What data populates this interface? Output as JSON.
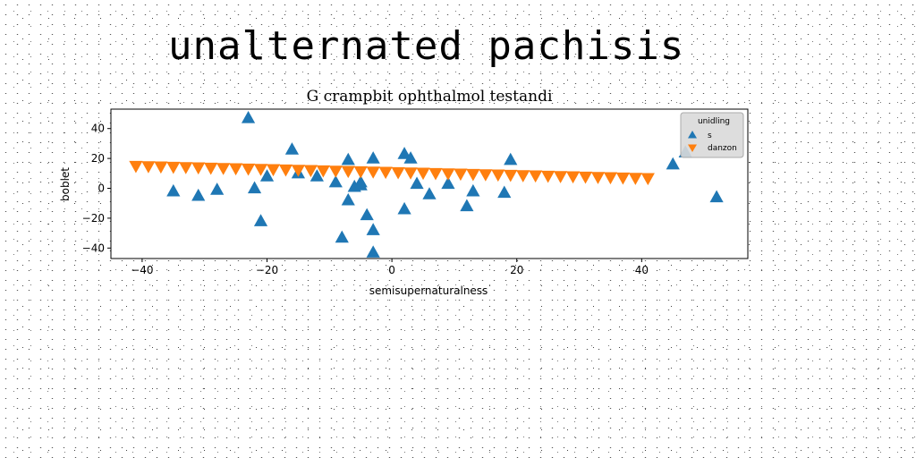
{
  "page_title": "unalternated pachisis",
  "chart_data": {
    "type": "scatter",
    "title": "G crampbit ophthalmol testandi",
    "xlabel": "semisupernaturalness",
    "ylabel": "boblet",
    "xlim": [
      -45,
      57
    ],
    "ylim": [
      -47,
      53
    ],
    "xticks": [
      -40,
      -20,
      0,
      20,
      40
    ],
    "yticks": [
      -40,
      -20,
      0,
      20,
      40
    ],
    "grid": false,
    "legend": {
      "title": "unidling",
      "placement": "top-right",
      "entries": [
        "s",
        "danzon"
      ]
    },
    "series": [
      {
        "name": "s",
        "marker": "triangle-up",
        "color": "#1f77b4",
        "x": [
          -23,
          -35,
          -31,
          -28,
          -22,
          -21,
          -20,
          -16,
          -15,
          -12,
          -9,
          -8,
          -7,
          -7,
          -6,
          -5,
          -5,
          -4,
          -3,
          -3,
          -3,
          2,
          2,
          3,
          4,
          6,
          9,
          12,
          13,
          18,
          19,
          45,
          47,
          52
        ],
        "y": [
          47,
          -2,
          -5,
          -1,
          0,
          -22,
          8,
          26,
          10,
          8,
          4,
          -33,
          19,
          -8,
          1,
          4,
          2,
          -18,
          -43,
          -28,
          20,
          23,
          -14,
          20,
          3,
          -4,
          3,
          -12,
          -2,
          -3,
          19,
          16,
          24,
          -6
        ]
      },
      {
        "name": "danzon",
        "marker": "triangle-down",
        "color": "#ff7f0e",
        "x": [
          -41,
          -39,
          -37,
          -35,
          -33,
          -31,
          -29,
          -27,
          -25,
          -23,
          -21,
          -19,
          -17,
          -15,
          -13,
          -11,
          -9,
          -7,
          -5,
          -3,
          -1,
          1,
          3,
          5,
          7,
          9,
          11,
          13,
          15,
          17,
          19,
          21,
          23,
          25,
          27,
          29,
          31,
          33,
          35,
          37,
          39,
          41
        ],
        "y": [
          15,
          14.8,
          14.6,
          14.4,
          14.2,
          14,
          13.8,
          13.6,
          13.4,
          13.2,
          13,
          12.8,
          12.6,
          12.4,
          12.2,
          12,
          11.8,
          11.6,
          11.4,
          11.2,
          11,
          10.8,
          10.6,
          10.4,
          10.2,
          10,
          9.8,
          9.6,
          9.4,
          9.2,
          9,
          8.8,
          8.6,
          8.4,
          8.2,
          8,
          7.8,
          7.6,
          7.4,
          7.2,
          7,
          6.8
        ]
      }
    ]
  }
}
